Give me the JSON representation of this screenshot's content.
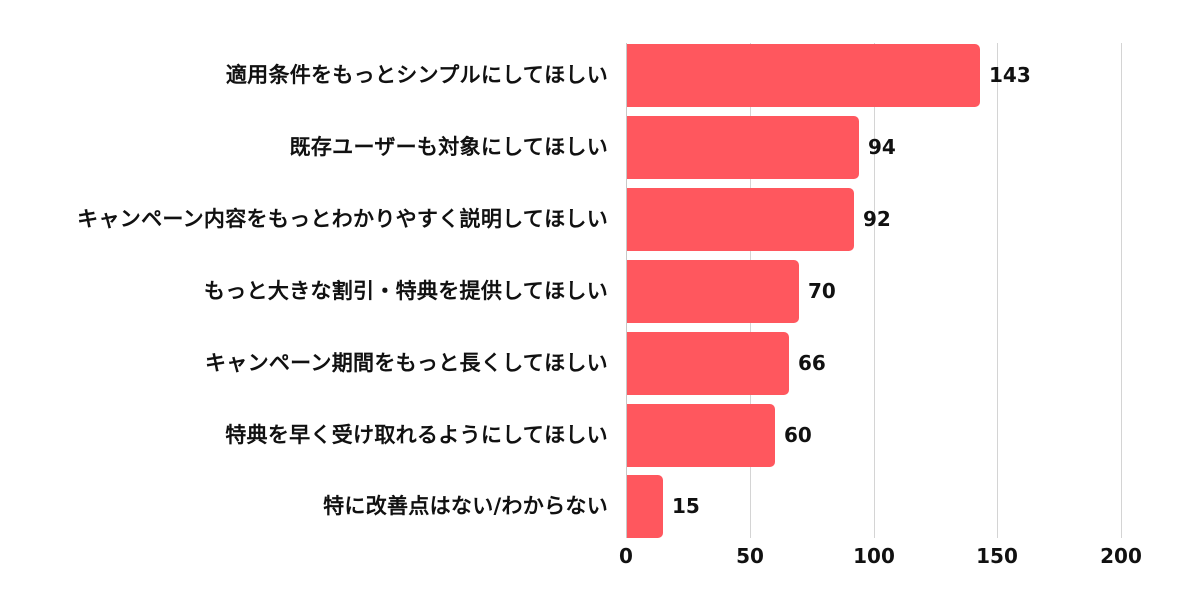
{
  "chart_data": {
    "type": "bar",
    "orientation": "horizontal",
    "title": "",
    "xlabel": "",
    "ylabel": "",
    "xlim": [
      0,
      200
    ],
    "xticks": [
      0,
      50,
      100,
      150,
      200
    ],
    "xtick_labels": [
      "0",
      "50",
      "100",
      "150",
      "200"
    ],
    "grid": true,
    "legend": null,
    "bar_color": "#FF575E",
    "categories": [
      "適用条件をもっとシンプルにしてほしい",
      "既存ユーザーも対象にしてほしい",
      "キャンペーン内容をもっとわかりやすく説明してほしい",
      "もっと大きな割引・特典を提供してほしい",
      "キャンペーン期間をもっと長くしてほしい",
      "特典を早く受け取れるようにしてほしい",
      "特に改善点はない/わからない"
    ],
    "values": [
      143,
      94,
      92,
      70,
      66,
      60,
      15
    ],
    "value_labels": [
      "143",
      "94",
      "92",
      "70",
      "66",
      "60",
      "15"
    ]
  }
}
